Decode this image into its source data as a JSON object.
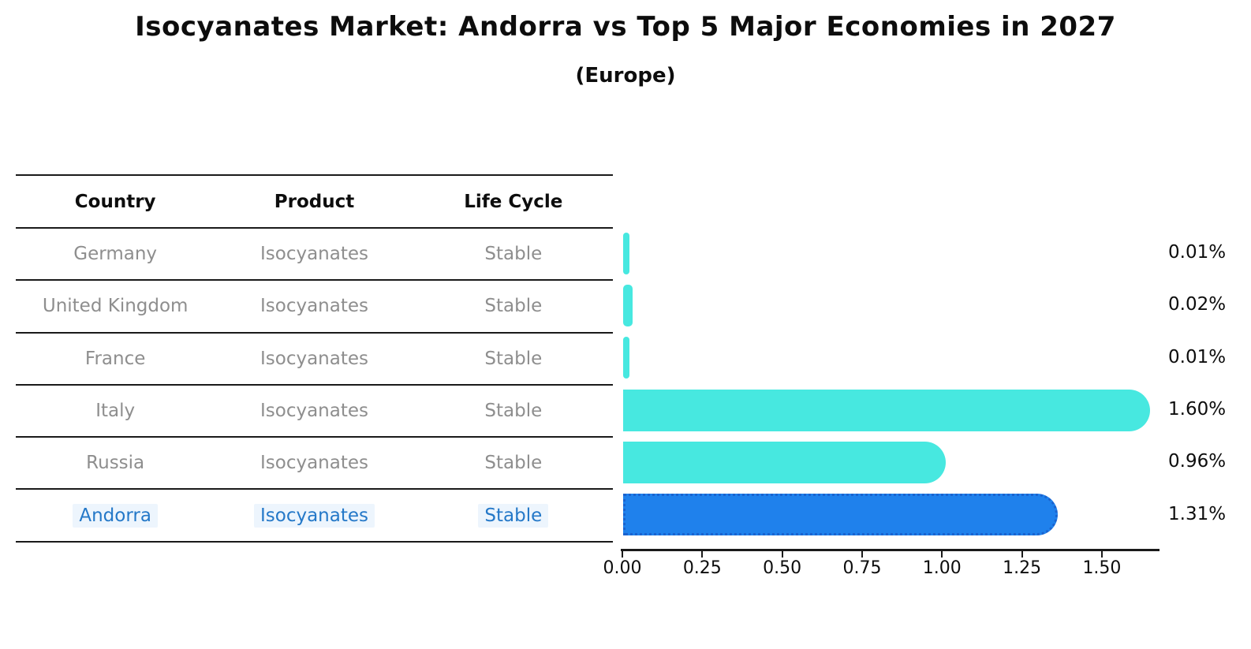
{
  "title": "Isocyanates Market: Andorra vs Top 5 Major Economies in 2027",
  "subtitle": "(Europe)",
  "table": {
    "headers": {
      "country": "Country",
      "product": "Product",
      "life_cycle": "Life Cycle"
    },
    "rows": [
      {
        "country": "Germany",
        "product": "Isocyanates",
        "life_cycle": "Stable",
        "highlight": false
      },
      {
        "country": "United Kingdom",
        "product": "Isocyanates",
        "life_cycle": "Stable",
        "highlight": false
      },
      {
        "country": "France",
        "product": "Isocyanates",
        "life_cycle": "Stable",
        "highlight": false
      },
      {
        "country": "Italy",
        "product": "Isocyanates",
        "life_cycle": "Stable",
        "highlight": false
      },
      {
        "country": "Russia",
        "product": "Isocyanates",
        "life_cycle": "Stable",
        "highlight": false
      },
      {
        "country": "Andorra",
        "product": "Isocyanates",
        "life_cycle": "Stable",
        "highlight": true
      }
    ]
  },
  "chart_data": {
    "type": "bar",
    "orientation": "horizontal",
    "title": "Isocyanates Market: Andorra vs Top 5 Major Economies in 2027",
    "subtitle": "(Europe)",
    "categories": [
      "Germany",
      "United Kingdom",
      "France",
      "Italy",
      "Russia",
      "Andorra"
    ],
    "values": [
      0.01,
      0.02,
      0.01,
      1.6,
      0.96,
      1.31
    ],
    "value_labels": [
      "0.01%",
      "0.02%",
      "0.01%",
      "1.60%",
      "0.96%",
      "1.31%"
    ],
    "xlabel": "",
    "ylabel": "",
    "xlim": [
      0,
      1.68
    ],
    "xticks": [
      0.0,
      0.25,
      0.5,
      0.75,
      1.0,
      1.25,
      1.5
    ],
    "xtick_labels": [
      "0.00",
      "0.25",
      "0.50",
      "0.75",
      "1.00",
      "1.25",
      "1.50"
    ],
    "grid": false,
    "legend": false,
    "highlight_index": 5,
    "bar_color_default": "#47e8e0",
    "bar_color_highlight": "#1f81ec",
    "highlight_border_color": "#1a63cf"
  },
  "colors": {
    "background": "#ffffff",
    "title_text": "#0d0d0d",
    "table_header_text": "#0d0d0d",
    "table_row_text": "#8e8e8e",
    "highlight_text": "#2478c8",
    "rule_line": "#1a1a1a",
    "value_label_text": "#0d0d0d"
  }
}
